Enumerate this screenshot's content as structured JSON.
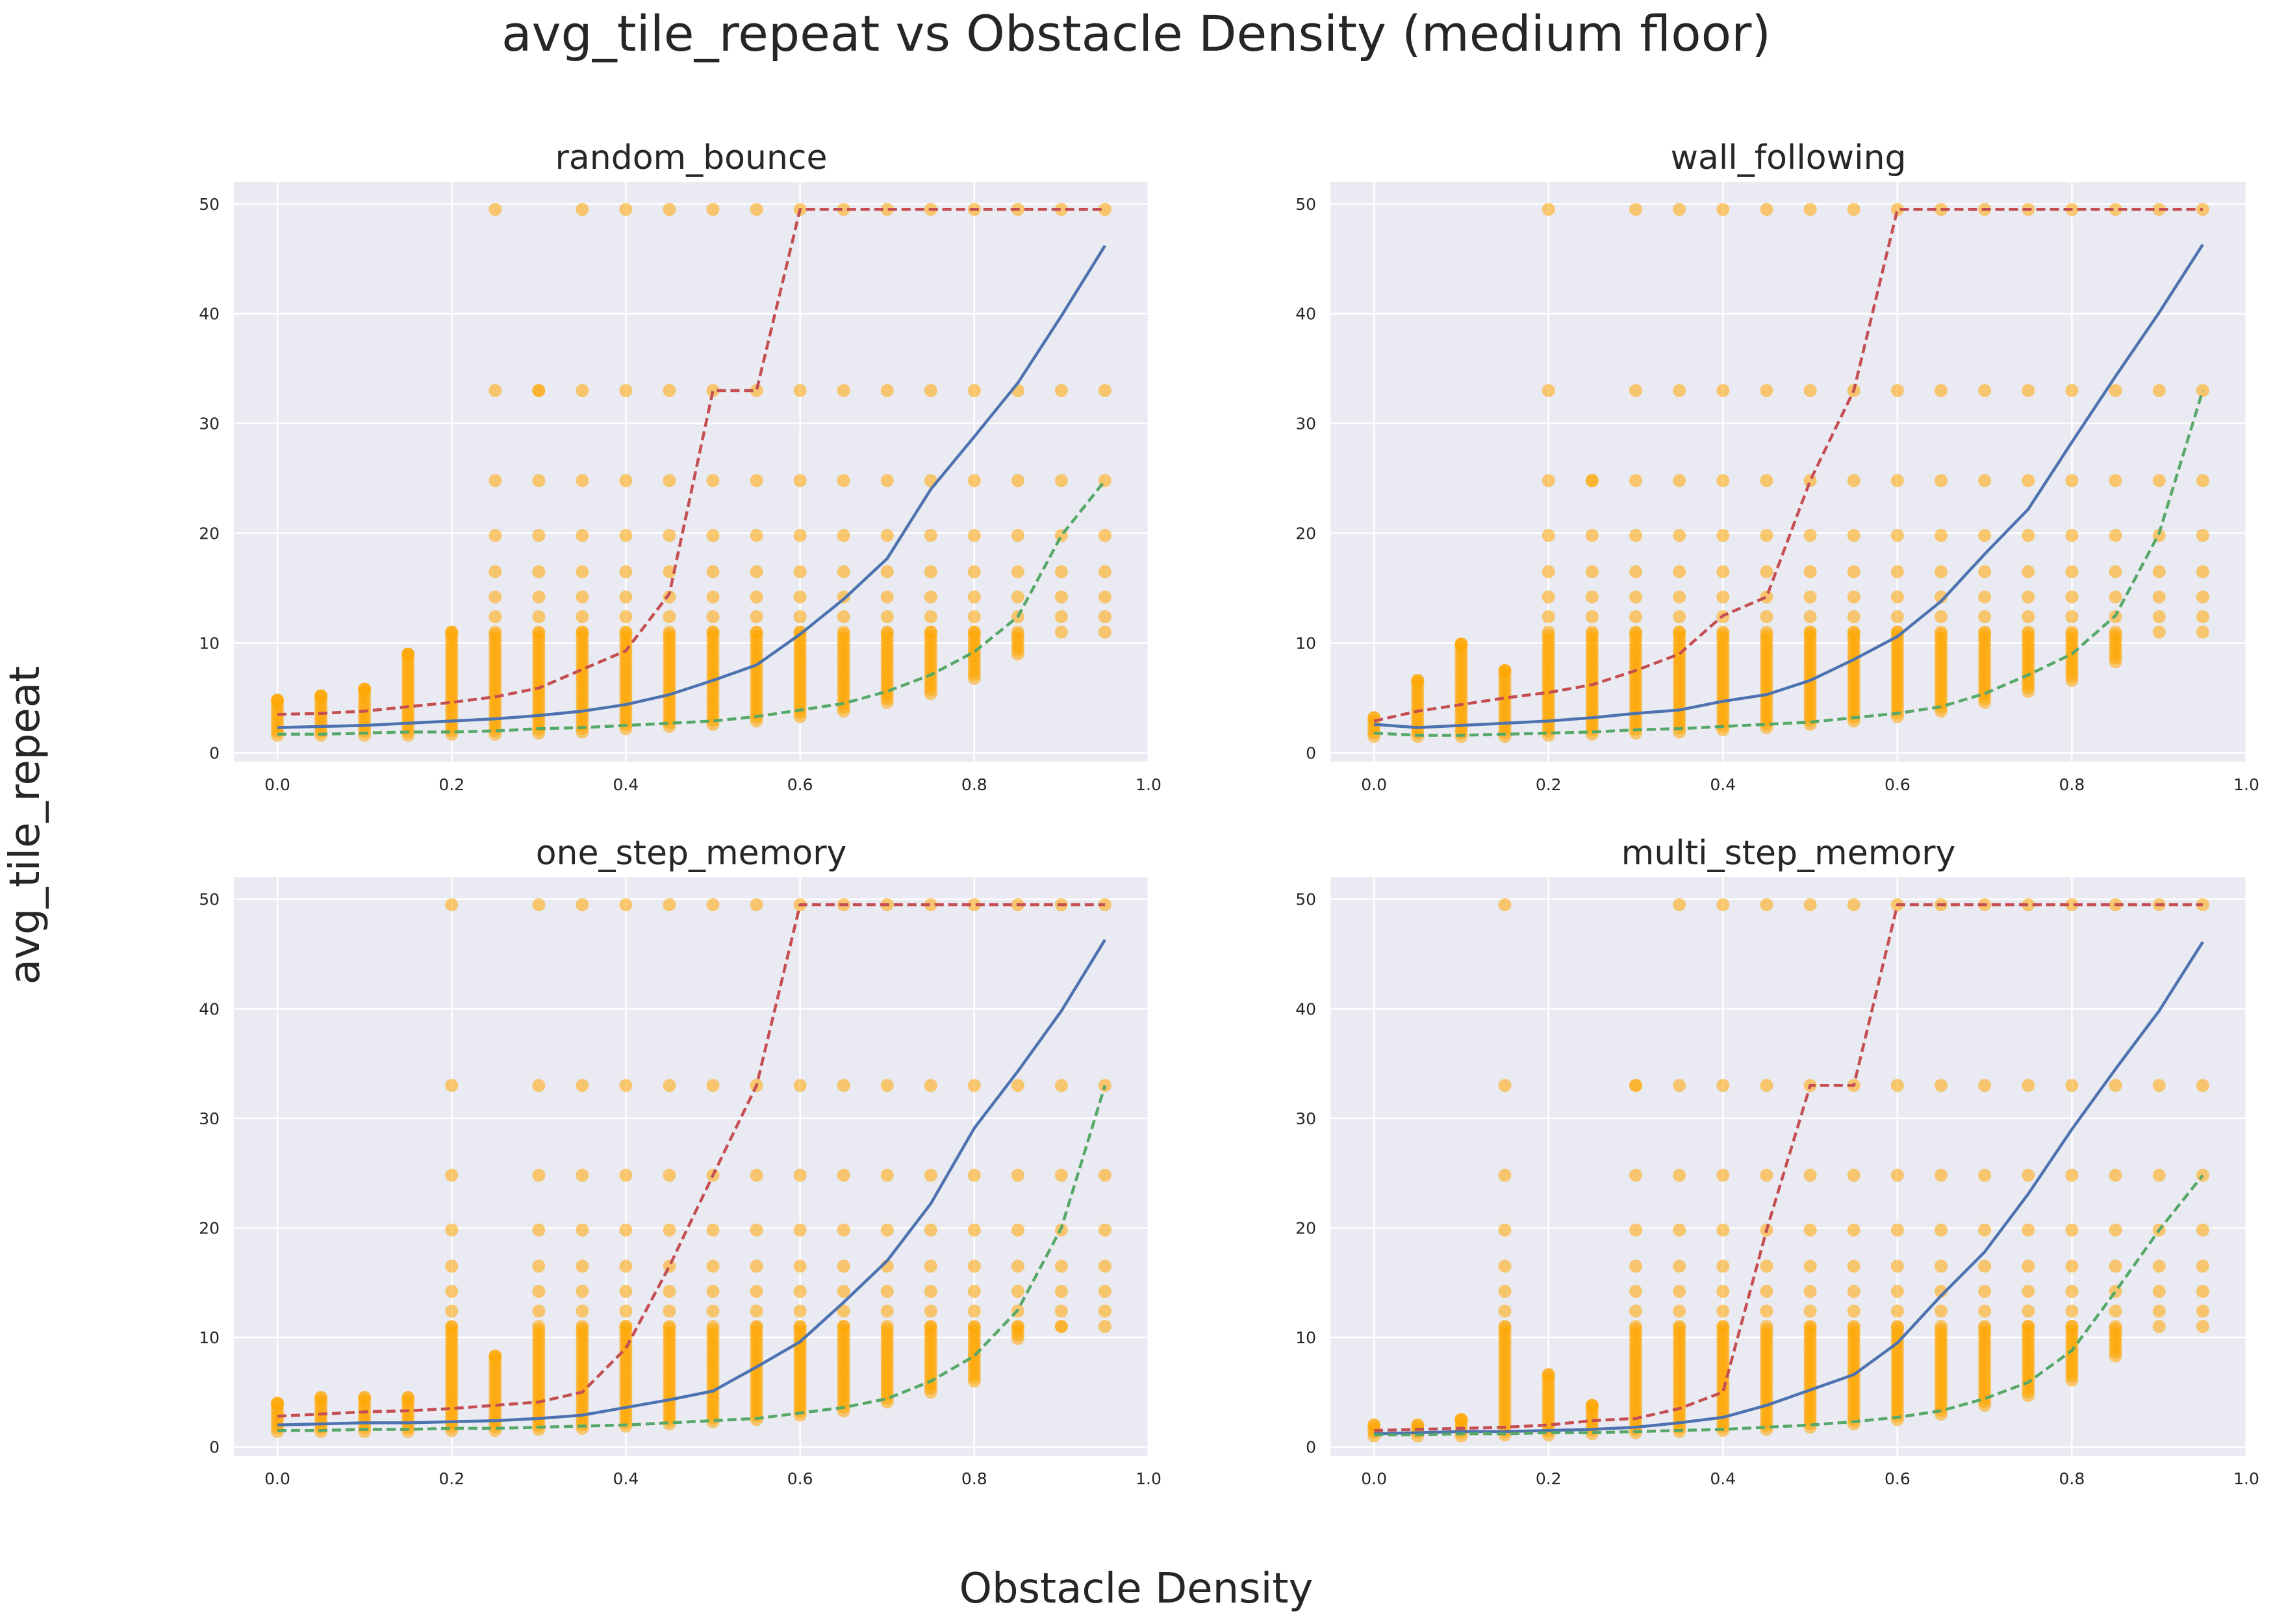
{
  "figure": {
    "title": "avg_tile_repeat vs Obstacle Density (medium floor)",
    "xlabel": "Obstacle Density",
    "ylabel": "avg_tile_repeat"
  },
  "colors": {
    "panel_background": "#eaeaf2",
    "grid": "#ffffff",
    "scatter": "#ffa500",
    "mean_line": "#4c72b0",
    "upper_line": "#c44e52",
    "lower_line": "#55a868"
  },
  "chart_data": [
    {
      "type": "scatter",
      "title": "random_bounce",
      "xlim": [
        -0.05,
        1.0
      ],
      "ylim": [
        -0.8,
        52
      ],
      "xticks": [
        "0.0",
        "0.2",
        "0.4",
        "0.6",
        "0.8",
        "1.0"
      ],
      "yticks": [
        "0",
        "10",
        "20",
        "30",
        "40",
        "50"
      ],
      "grid": true,
      "x": [
        0.0,
        0.05,
        0.1,
        0.15,
        0.2,
        0.25,
        0.3,
        0.35,
        0.4,
        0.45,
        0.5,
        0.55,
        0.6,
        0.65,
        0.7,
        0.75,
        0.8,
        0.85,
        0.9,
        0.95
      ],
      "scatter_max": [
        4.8,
        5.2,
        5.8,
        9,
        11,
        49.5,
        33,
        49.5,
        49.5,
        49.5,
        49.5,
        49.5,
        49.5,
        49.5,
        49.5,
        49.5,
        49.5,
        49.5,
        49.5,
        49.5
      ],
      "scatter_levels": [
        33,
        24.8,
        19.8,
        16.5,
        14.2,
        12.4
      ],
      "scatter_min": [
        1.6,
        1.6,
        1.6,
        1.6,
        1.7,
        1.7,
        1.8,
        1.9,
        2.2,
        2.4,
        2.6,
        2.9,
        3.3,
        3.8,
        4.6,
        5.4,
        6.8,
        9,
        12.4,
        19.8
      ],
      "series": [
        {
          "role": "mean",
          "style": "solid",
          "values": [
            2.3,
            2.4,
            2.5,
            2.7,
            2.9,
            3.1,
            3.4,
            3.8,
            4.4,
            5.3,
            6.6,
            8.0,
            10.8,
            14.0,
            17.7,
            24.0,
            28.8,
            33.7,
            39.8,
            46.2
          ]
        },
        {
          "role": "upper",
          "style": "dashed",
          "values": [
            3.5,
            3.6,
            3.8,
            4.2,
            4.6,
            5.1,
            5.9,
            7.6,
            9.3,
            14.5,
            33.0,
            33.0,
            49.5,
            49.5,
            49.5,
            49.5,
            49.5,
            49.5,
            49.5,
            49.5
          ]
        },
        {
          "role": "lower",
          "style": "dashed",
          "values": [
            1.7,
            1.7,
            1.8,
            1.9,
            1.9,
            2.0,
            2.2,
            2.3,
            2.5,
            2.7,
            2.9,
            3.3,
            3.9,
            4.5,
            5.6,
            7.1,
            9.2,
            12.4,
            19.8,
            24.8
          ]
        }
      ]
    },
    {
      "type": "scatter",
      "title": "wall_following",
      "xlim": [
        -0.05,
        1.0
      ],
      "ylim": [
        -0.8,
        52
      ],
      "xticks": [
        "0.0",
        "0.2",
        "0.4",
        "0.6",
        "0.8",
        "1.0"
      ],
      "yticks": [
        "0",
        "10",
        "20",
        "30",
        "40",
        "50"
      ],
      "grid": true,
      "x": [
        0.0,
        0.05,
        0.1,
        0.15,
        0.2,
        0.25,
        0.3,
        0.35,
        0.4,
        0.45,
        0.5,
        0.55,
        0.6,
        0.65,
        0.7,
        0.75,
        0.8,
        0.85,
        0.9,
        0.95
      ],
      "scatter_max": [
        3.2,
        6.6,
        9.9,
        7.5,
        49.5,
        24.8,
        49.5,
        49.5,
        49.5,
        49.5,
        49.5,
        49.5,
        49.5,
        49.5,
        49.5,
        49.5,
        49.5,
        49.5,
        49.5,
        49.5
      ],
      "scatter_levels": [
        33,
        24.8,
        19.8,
        16.5,
        14.2,
        12.4
      ],
      "scatter_min": [
        1.5,
        1.5,
        1.5,
        1.5,
        1.6,
        1.7,
        1.8,
        1.9,
        2.1,
        2.3,
        2.6,
        2.9,
        3.3,
        3.8,
        4.6,
        5.6,
        6.6,
        8.3,
        12.4,
        24.8
      ],
      "series": [
        {
          "role": "mean",
          "style": "solid",
          "values": [
            2.6,
            2.3,
            2.5,
            2.7,
            2.9,
            3.2,
            3.6,
            3.9,
            4.7,
            5.3,
            6.6,
            8.5,
            10.6,
            13.8,
            18.1,
            22.2,
            28.3,
            34.3,
            40.1,
            46.3
          ]
        },
        {
          "role": "upper",
          "style": "dashed",
          "values": [
            2.9,
            3.8,
            4.4,
            5.0,
            5.5,
            6.2,
            7.5,
            9.0,
            12.5,
            14.2,
            24.8,
            33.0,
            49.5,
            49.5,
            49.5,
            49.5,
            49.5,
            49.5,
            49.5,
            49.5
          ]
        },
        {
          "role": "lower",
          "style": "dashed",
          "values": [
            1.8,
            1.6,
            1.6,
            1.7,
            1.8,
            1.9,
            2.1,
            2.2,
            2.4,
            2.6,
            2.8,
            3.2,
            3.6,
            4.2,
            5.4,
            7.1,
            9.0,
            12.5,
            20.0,
            33.0
          ]
        }
      ]
    },
    {
      "type": "scatter",
      "title": "one_step_memory",
      "xlim": [
        -0.05,
        1.0
      ],
      "ylim": [
        -0.8,
        52
      ],
      "xticks": [
        "0.0",
        "0.2",
        "0.4",
        "0.6",
        "0.8",
        "1.0"
      ],
      "yticks": [
        "0",
        "10",
        "20",
        "30",
        "40",
        "50"
      ],
      "grid": true,
      "x": [
        0.0,
        0.05,
        0.1,
        0.15,
        0.2,
        0.25,
        0.3,
        0.35,
        0.4,
        0.45,
        0.5,
        0.55,
        0.6,
        0.65,
        0.7,
        0.75,
        0.8,
        0.85,
        0.9,
        0.95
      ],
      "scatter_max": [
        4,
        4.5,
        4.5,
        4.5,
        49.5,
        8.3,
        49.5,
        49.5,
        49.5,
        49.5,
        49.5,
        49.5,
        49.5,
        49.5,
        49.5,
        49.5,
        49.5,
        49.5,
        49.5,
        49.5
      ],
      "scatter_levels": [
        33,
        24.8,
        19.8,
        16.5,
        14.2,
        12.4
      ],
      "scatter_min": [
        1.4,
        1.4,
        1.4,
        1.4,
        1.5,
        1.5,
        1.6,
        1.7,
        1.9,
        2.1,
        2.3,
        2.5,
        2.9,
        3.3,
        4.1,
        5.0,
        6.0,
        9.9,
        11.0,
        19.8
      ],
      "series": [
        {
          "role": "mean",
          "style": "solid",
          "values": [
            2.0,
            2.1,
            2.2,
            2.2,
            2.3,
            2.4,
            2.6,
            2.9,
            3.6,
            4.3,
            5.1,
            7.3,
            9.6,
            13.2,
            17.0,
            22.2,
            29.1,
            34.3,
            39.8,
            46.3
          ]
        },
        {
          "role": "upper",
          "style": "dashed",
          "values": [
            2.8,
            3.0,
            3.2,
            3.3,
            3.5,
            3.8,
            4.1,
            5.0,
            9.0,
            16.5,
            24.8,
            33.0,
            49.5,
            49.5,
            49.5,
            49.5,
            49.5,
            49.5,
            49.5,
            49.5
          ]
        },
        {
          "role": "lower",
          "style": "dashed",
          "values": [
            1.5,
            1.5,
            1.6,
            1.6,
            1.7,
            1.7,
            1.8,
            1.9,
            2.0,
            2.2,
            2.4,
            2.6,
            3.1,
            3.6,
            4.4,
            6.0,
            8.3,
            12.5,
            20.0,
            33.0
          ]
        }
      ]
    },
    {
      "type": "scatter",
      "title": "multi_step_memory",
      "xlim": [
        -0.05,
        1.0
      ],
      "ylim": [
        -0.8,
        52
      ],
      "xticks": [
        "0.0",
        "0.2",
        "0.4",
        "0.6",
        "0.8",
        "1.0"
      ],
      "yticks": [
        "0",
        "10",
        "20",
        "30",
        "40",
        "50"
      ],
      "grid": true,
      "x": [
        0.0,
        0.05,
        0.1,
        0.15,
        0.2,
        0.25,
        0.3,
        0.35,
        0.4,
        0.45,
        0.5,
        0.55,
        0.6,
        0.65,
        0.7,
        0.75,
        0.8,
        0.85,
        0.9,
        0.95
      ],
      "scatter_max": [
        2,
        2,
        2.5,
        49.5,
        6.6,
        3.8,
        33,
        49.5,
        49.5,
        49.5,
        49.5,
        49.5,
        49.5,
        49.5,
        49.5,
        49.5,
        49.5,
        49.5,
        49.5,
        49.5
      ],
      "scatter_levels": [
        33,
        24.8,
        19.8,
        16.5,
        14.2,
        12.4
      ],
      "scatter_min": [
        1.0,
        1.0,
        1.0,
        1.1,
        1.1,
        1.2,
        1.3,
        1.4,
        1.5,
        1.6,
        1.8,
        2.1,
        2.5,
        3.0,
        3.8,
        4.7,
        6.1,
        8.3,
        12.4,
        24.8
      ],
      "series": [
        {
          "role": "mean",
          "style": "solid",
          "values": [
            1.2,
            1.3,
            1.4,
            1.4,
            1.5,
            1.6,
            1.8,
            2.2,
            2.7,
            3.8,
            5.2,
            6.6,
            9.5,
            13.8,
            17.8,
            23.1,
            29.0,
            34.5,
            39.8,
            46.1
          ]
        },
        {
          "role": "upper",
          "style": "dashed",
          "values": [
            1.5,
            1.6,
            1.7,
            1.8,
            2.0,
            2.4,
            2.6,
            3.5,
            5.0,
            19.8,
            33.0,
            33.0,
            49.5,
            49.5,
            49.5,
            49.5,
            49.5,
            49.5,
            49.5,
            49.5
          ]
        },
        {
          "role": "lower",
          "style": "dashed",
          "values": [
            1.1,
            1.1,
            1.2,
            1.2,
            1.3,
            1.3,
            1.4,
            1.5,
            1.6,
            1.8,
            2.0,
            2.3,
            2.7,
            3.3,
            4.4,
            5.9,
            8.8,
            14.2,
            19.8,
            24.8
          ]
        }
      ]
    }
  ]
}
